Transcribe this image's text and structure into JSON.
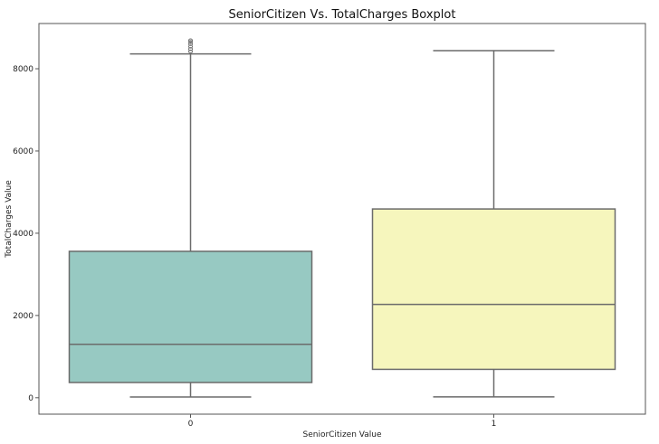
{
  "chart_data": {
    "type": "boxplot",
    "title": "SeniorCitizen Vs. TotalCharges Boxplot",
    "xlabel": "SeniorCitizen Value",
    "ylabel": "TotalCharges Value",
    "categories": [
      "0",
      "1"
    ],
    "ylim": [
      -400,
      9100
    ],
    "yticks": [
      0,
      2000,
      4000,
      6000,
      8000
    ],
    "grid": false,
    "boxes": [
      {
        "category": "0",
        "color": "#97c9c2",
        "min": 19,
        "q1": 370,
        "median": 1300,
        "q3": 3560,
        "max": 8360,
        "outliers": [
          8420,
          8480,
          8540,
          8600,
          8650,
          8690
        ]
      },
      {
        "category": "1",
        "color": "#f6f6bd",
        "min": 20,
        "q1": 690,
        "median": 2270,
        "q3": 4590,
        "max": 8440,
        "outliers": []
      }
    ]
  }
}
